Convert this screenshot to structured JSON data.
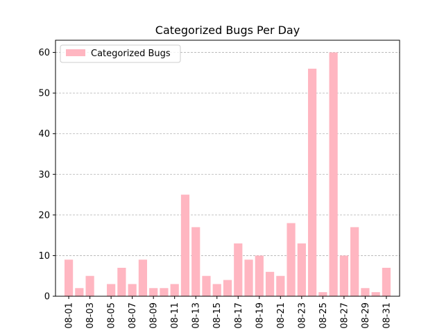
{
  "chart_data": {
    "type": "bar",
    "title": "Categorized Bugs Per Day",
    "xlabel": "",
    "ylabel": "",
    "ylim": [
      0,
      63
    ],
    "yticks": [
      0,
      10,
      20,
      30,
      40,
      50,
      60
    ],
    "grid": "y-dashed",
    "legend_position": "top-left",
    "bar_color": "#ffb6c1",
    "categories": [
      "08-01",
      "08-02",
      "08-03",
      "08-04",
      "08-05",
      "08-06",
      "08-07",
      "08-08",
      "08-09",
      "08-10",
      "08-11",
      "08-12",
      "08-13",
      "08-14",
      "08-15",
      "08-16",
      "08-17",
      "08-18",
      "08-19",
      "08-20",
      "08-21",
      "08-22",
      "08-23",
      "08-24",
      "08-25",
      "08-26",
      "08-27",
      "08-28",
      "08-29",
      "08-30",
      "08-31"
    ],
    "tick_labels": [
      "08-01",
      "08-03",
      "08-05",
      "08-07",
      "08-09",
      "08-11",
      "08-13",
      "08-15",
      "08-17",
      "08-19",
      "08-21",
      "08-23",
      "08-25",
      "08-27",
      "08-29",
      "08-31"
    ],
    "series": [
      {
        "name": "Categorized Bugs",
        "values": [
          9,
          2,
          5,
          0,
          3,
          7,
          3,
          9,
          2,
          2,
          3,
          25,
          17,
          5,
          3,
          4,
          13,
          9,
          10,
          6,
          5,
          18,
          13,
          56,
          1,
          60,
          10,
          17,
          2,
          1,
          7
        ]
      }
    ]
  }
}
